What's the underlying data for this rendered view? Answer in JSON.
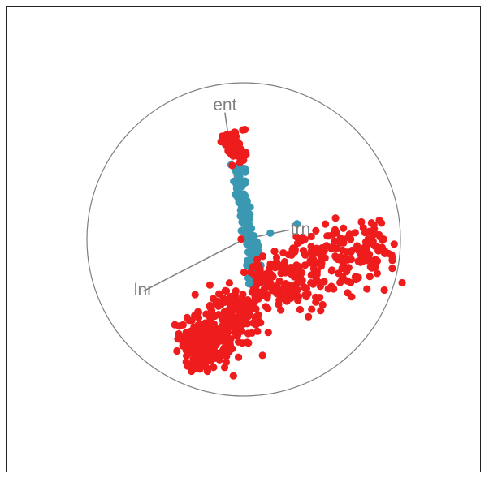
{
  "chart_data": {
    "type": "scatter",
    "title": "",
    "xlabel": "",
    "ylabel": "",
    "grid": false,
    "legend": "none",
    "colors": {
      "red_group": "#ee1c1c",
      "blue_group": "#3a98b2",
      "axis_lines": "#7f7f7f",
      "circle": "#7f7f7f"
    },
    "projection_axes": [
      {
        "name": "ent",
        "x": -0.12,
        "y": 0.81
      },
      {
        "name": "trn",
        "x": 0.29,
        "y": 0.06
      },
      {
        "name": "lnr",
        "x": -0.64,
        "y": -0.33
      }
    ],
    "clusters": [
      {
        "group": "red",
        "kind": "band",
        "x0": -0.09,
        "y0": 0.68,
        "x1": -0.02,
        "y1": 0.49,
        "width": 0.028,
        "count": 70,
        "seed": 11
      },
      {
        "group": "blue",
        "kind": "band",
        "x0": -0.04,
        "y0": 0.49,
        "x1": 0.08,
        "y1": -0.29,
        "width": 0.02,
        "count": 150,
        "seed": 23
      },
      {
        "group": "red",
        "kind": "band",
        "x0": 0.04,
        "y0": -0.33,
        "x1": 0.93,
        "y1": -0.03,
        "width": 0.11,
        "count": 300,
        "seed": 37
      },
      {
        "group": "red",
        "kind": "band",
        "x0": -0.34,
        "y0": -0.73,
        "x1": 0.04,
        "y1": -0.4,
        "width": 0.09,
        "count": 280,
        "seed": 51
      },
      {
        "group": "red",
        "kind": "blob",
        "cx": -0.28,
        "cy": -0.72,
        "rx": 0.05,
        "ry": 0.06,
        "count": 110,
        "seed": 67
      }
    ],
    "fixed_points": [
      {
        "group": "blue",
        "x": 0.17,
        "y": 0.04
      },
      {
        "group": "blue",
        "x": 0.34,
        "y": 0.1
      },
      {
        "group": "blue",
        "x": 0.06,
        "y": -0.03
      },
      {
        "group": "blue",
        "x": 0.1,
        "y": -0.09
      },
      {
        "group": "blue",
        "x": 0.04,
        "y": 0.16
      },
      {
        "group": "red",
        "x": 0.39,
        "y": 0.0
      },
      {
        "group": "red",
        "x": 0.9,
        "y": -0.09
      },
      {
        "group": "red",
        "x": 0.85,
        "y": -0.14
      },
      {
        "group": "red",
        "x": 0.67,
        "y": -0.18
      },
      {
        "group": "red",
        "x": 0.46,
        "y": -0.4
      },
      {
        "group": "red",
        "x": 0.12,
        "y": -0.74
      },
      {
        "group": "red",
        "x": 0.96,
        "y": -0.03
      }
    ]
  }
}
